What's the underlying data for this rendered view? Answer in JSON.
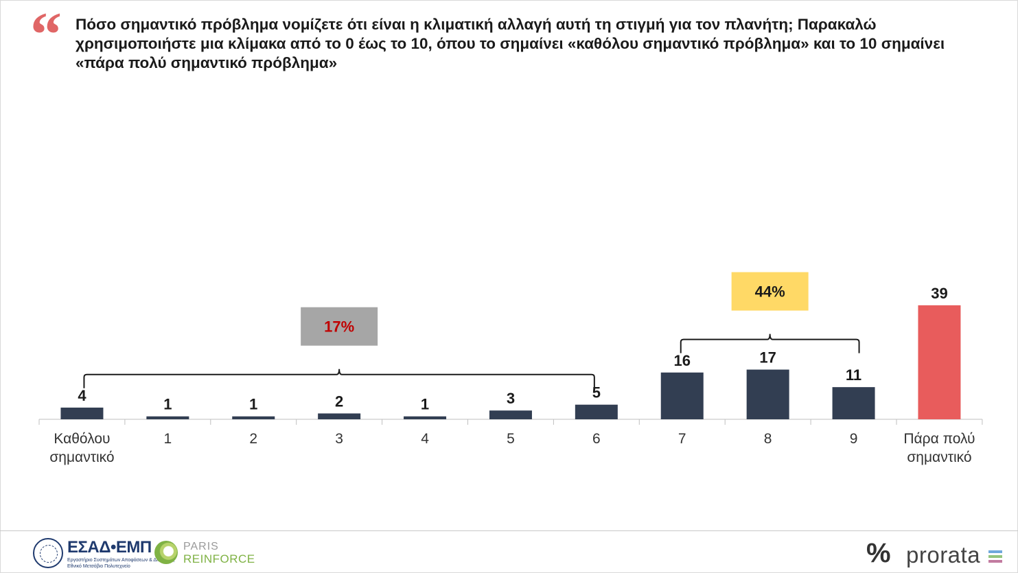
{
  "title": "Πόσο σημαντικό πρόβλημα νομίζετε ότι είναι η κλιματική αλλαγή αυτή τη στιγμή για τον πλανήτη; Παρακαλώ χρησιμοποιήστε μια κλίμακα από το 0 έως το 10, όπου το σημαίνει «καθόλου σημαντικό πρόβλημα» και το 10 σημαίνει «πάρα πολύ σημαντικό πρόβλημα»",
  "quote_mark": "“",
  "chart_data": {
    "type": "bar",
    "title": "",
    "xlabel": "",
    "ylabel": "",
    "ylim": [
      0,
      50
    ],
    "grid": false,
    "categories": [
      "Καθόλου σημαντικό",
      "1",
      "2",
      "3",
      "4",
      "5",
      "6",
      "7",
      "8",
      "9",
      "Πάρα πολύ σημαντικό"
    ],
    "category_lines": [
      [
        "Καθόλου",
        "σημαντικό"
      ],
      [
        "1"
      ],
      [
        "2"
      ],
      [
        "3"
      ],
      [
        "4"
      ],
      [
        "5"
      ],
      [
        "6"
      ],
      [
        "7"
      ],
      [
        "8"
      ],
      [
        "9"
      ],
      [
        "Πάρα πολύ",
        "σημαντικό"
      ]
    ],
    "values": [
      4,
      1,
      1,
      2,
      1,
      3,
      5,
      16,
      17,
      11,
      39
    ],
    "data_labels": [
      "4",
      "1",
      "1",
      "2",
      "1",
      "3",
      "5",
      "16",
      "17",
      "11",
      "39"
    ],
    "bar_colors": [
      "#323e52",
      "#323e52",
      "#323e52",
      "#323e52",
      "#323e52",
      "#323e52",
      "#323e52",
      "#323e52",
      "#323e52",
      "#323e52",
      "#e85c5c"
    ],
    "brackets": [
      {
        "label": "17%",
        "from_index": 0,
        "to_index": 6,
        "box_color": "#a6a6a6",
        "text_color": "#c00000"
      },
      {
        "label": "44%",
        "from_index": 7,
        "to_index": 9,
        "box_color": "#ffd966",
        "text_color": "#1a1a1a"
      }
    ]
  },
  "footer": {
    "esad_name": "ΕΣΑΔ•ΕΜΠ",
    "esad_sub1": "Εργαστήριο Συστημάτων Αποφάσεων & Διοίκησης",
    "esad_sub2": "Εθνικό Μετσόβιο Πολυτεχνείο",
    "paris_line1": "PARIS",
    "paris_line2": "REINFORCE",
    "prorata_symbol": "%",
    "prorata_word": "prorata",
    "prorata_stripe_colors": [
      "#6fa8dc",
      "#93c47d",
      "#c27ba0"
    ]
  }
}
